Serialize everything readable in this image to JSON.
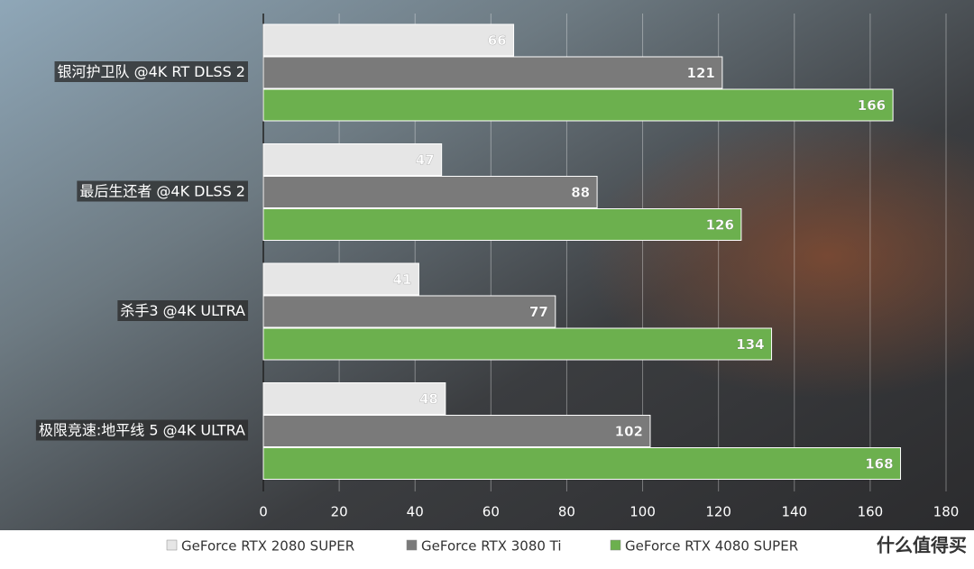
{
  "chart_data": {
    "type": "bar",
    "orientation": "horizontal",
    "categories": [
      "银河护卫队 @4K RT DLSS 2",
      "最后生还者 @4K DLSS 2",
      "杀手3 @4K ULTRA",
      "极限竞速:地平线 5 @4K ULTRA"
    ],
    "series": [
      {
        "name": "GeForce RTX 2080 SUPER",
        "color": "#e6e6e6",
        "values": [
          66,
          47,
          41,
          48
        ]
      },
      {
        "name": "GeForce RTX 3080 Ti",
        "color": "#7a7a7a",
        "values": [
          121,
          88,
          77,
          102
        ]
      },
      {
        "name": "GeForce RTX 4080 SUPER",
        "color": "#6cb04e",
        "values": [
          166,
          126,
          134,
          168
        ]
      }
    ],
    "xlim": [
      0,
      180
    ],
    "xticks": [
      0,
      20,
      40,
      60,
      80,
      100,
      120,
      140,
      160,
      180
    ],
    "grid": true,
    "legend": "bottom",
    "watermark": "什么值得买"
  }
}
